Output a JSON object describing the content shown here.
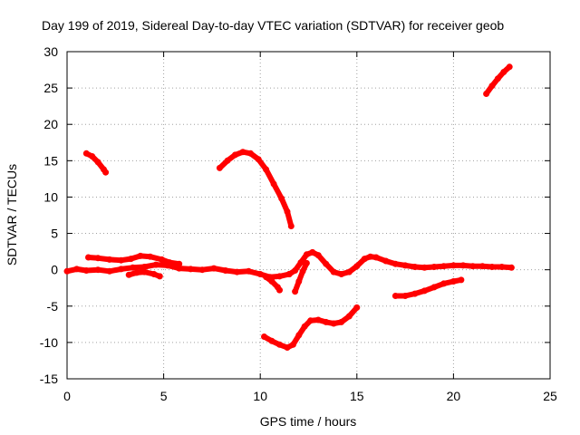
{
  "chart_data": {
    "type": "scatter",
    "title": "Day 199 of 2019, Sidereal Day-to-day VTEC variation (SDTVAR) for receiver geob",
    "xlabel": "GPS time / hours",
    "ylabel": "SDTVAR / TECUs",
    "xlim": [
      0,
      25
    ],
    "ylim": [
      -15,
      30
    ],
    "x_ticks": [
      0,
      5,
      10,
      15,
      20,
      25
    ],
    "y_ticks": [
      -15,
      -10,
      -5,
      0,
      5,
      10,
      15,
      20,
      25,
      30
    ],
    "grid": true,
    "legend": "none",
    "marker_color": "#ff0000",
    "series": [
      {
        "name": "arc-1",
        "points": [
          [
            1.0,
            16.0
          ],
          [
            1.3,
            15.6
          ],
          [
            1.6,
            14.8
          ],
          [
            1.9,
            13.8
          ],
          [
            2.0,
            13.4
          ]
        ]
      },
      {
        "name": "arc-2",
        "points": [
          [
            7.9,
            14.0
          ],
          [
            8.3,
            15.0
          ],
          [
            8.7,
            15.8
          ],
          [
            9.1,
            16.2
          ],
          [
            9.5,
            16.0
          ],
          [
            9.9,
            15.2
          ],
          [
            10.3,
            13.8
          ],
          [
            10.7,
            11.8
          ],
          [
            11.1,
            9.8
          ],
          [
            11.4,
            8.0
          ],
          [
            11.6,
            6.0
          ]
        ]
      },
      {
        "name": "arc-3",
        "points": [
          [
            21.7,
            24.2
          ],
          [
            22.0,
            25.3
          ],
          [
            22.3,
            26.3
          ],
          [
            22.6,
            27.2
          ],
          [
            22.9,
            27.9
          ]
        ]
      },
      {
        "name": "arc-4",
        "points": [
          [
            1.1,
            1.7
          ],
          [
            1.6,
            1.6
          ],
          [
            2.2,
            1.4
          ],
          [
            2.8,
            1.3
          ],
          [
            3.3,
            1.5
          ],
          [
            3.8,
            1.9
          ],
          [
            4.3,
            1.8
          ],
          [
            4.9,
            1.4
          ],
          [
            5.3,
            1.0
          ],
          [
            5.8,
            0.8
          ]
        ]
      },
      {
        "name": "arc-5",
        "points": [
          [
            0.0,
            -0.2
          ],
          [
            0.5,
            0.1
          ],
          [
            1.0,
            -0.1
          ],
          [
            1.6,
            0.0
          ],
          [
            2.2,
            -0.2
          ],
          [
            2.8,
            0.1
          ],
          [
            3.4,
            0.3
          ],
          [
            4.0,
            0.4
          ],
          [
            4.6,
            0.7
          ],
          [
            5.2,
            0.6
          ],
          [
            5.8,
            0.2
          ],
          [
            6.4,
            0.1
          ],
          [
            7.0,
            0.0
          ],
          [
            7.6,
            0.2
          ],
          [
            8.2,
            -0.1
          ],
          [
            8.8,
            -0.3
          ],
          [
            9.4,
            -0.2
          ],
          [
            10.0,
            -0.6
          ],
          [
            10.5,
            -1.0
          ],
          [
            11.0,
            -0.9
          ],
          [
            11.5,
            -0.6
          ]
        ]
      },
      {
        "name": "arc-6",
        "points": [
          [
            3.2,
            -0.7
          ],
          [
            3.6,
            -0.4
          ],
          [
            4.0,
            -0.3
          ],
          [
            4.5,
            -0.6
          ],
          [
            4.8,
            -0.9
          ]
        ]
      },
      {
        "name": "arc-7",
        "points": [
          [
            10.3,
            -1.0
          ],
          [
            10.6,
            -1.6
          ],
          [
            10.9,
            -2.4
          ],
          [
            11.0,
            -2.8
          ]
        ]
      },
      {
        "name": "arc-8",
        "points": [
          [
            11.5,
            -0.6
          ],
          [
            11.8,
            -0.1
          ],
          [
            12.1,
            1.0
          ],
          [
            12.4,
            2.1
          ],
          [
            12.7,
            2.4
          ],
          [
            13.0,
            2.0
          ],
          [
            13.4,
            0.8
          ],
          [
            13.8,
            -0.3
          ],
          [
            14.2,
            -0.6
          ],
          [
            14.6,
            -0.3
          ],
          [
            15.0,
            0.5
          ],
          [
            15.4,
            1.5
          ],
          [
            15.7,
            1.8
          ],
          [
            16.0,
            1.7
          ],
          [
            16.5,
            1.2
          ],
          [
            17.0,
            0.8
          ],
          [
            17.5,
            0.6
          ],
          [
            18.0,
            0.4
          ],
          [
            18.5,
            0.3
          ],
          [
            19.0,
            0.4
          ],
          [
            19.5,
            0.5
          ],
          [
            20.0,
            0.6
          ],
          [
            20.5,
            0.6
          ],
          [
            21.0,
            0.5
          ],
          [
            21.5,
            0.5
          ],
          [
            22.0,
            0.4
          ],
          [
            22.5,
            0.4
          ],
          [
            23.0,
            0.3
          ]
        ]
      },
      {
        "name": "arc-9",
        "points": [
          [
            11.8,
            -3.0
          ],
          [
            12.0,
            -1.6
          ],
          [
            12.2,
            -0.2
          ],
          [
            12.4,
            0.9
          ]
        ]
      },
      {
        "name": "arc-10",
        "points": [
          [
            10.2,
            -9.2
          ],
          [
            10.6,
            -9.8
          ],
          [
            11.0,
            -10.3
          ],
          [
            11.4,
            -10.7
          ],
          [
            11.7,
            -10.3
          ],
          [
            12.0,
            -9.0
          ],
          [
            12.3,
            -7.8
          ],
          [
            12.6,
            -7.0
          ],
          [
            13.0,
            -6.9
          ],
          [
            13.4,
            -7.2
          ],
          [
            13.8,
            -7.4
          ],
          [
            14.2,
            -7.2
          ],
          [
            14.6,
            -6.4
          ],
          [
            15.0,
            -5.2
          ]
        ]
      },
      {
        "name": "arc-11",
        "points": [
          [
            17.0,
            -3.6
          ],
          [
            17.5,
            -3.6
          ],
          [
            18.0,
            -3.3
          ],
          [
            18.5,
            -2.9
          ],
          [
            19.0,
            -2.4
          ],
          [
            19.5,
            -1.9
          ],
          [
            20.0,
            -1.6
          ],
          [
            20.4,
            -1.4
          ]
        ]
      }
    ]
  }
}
